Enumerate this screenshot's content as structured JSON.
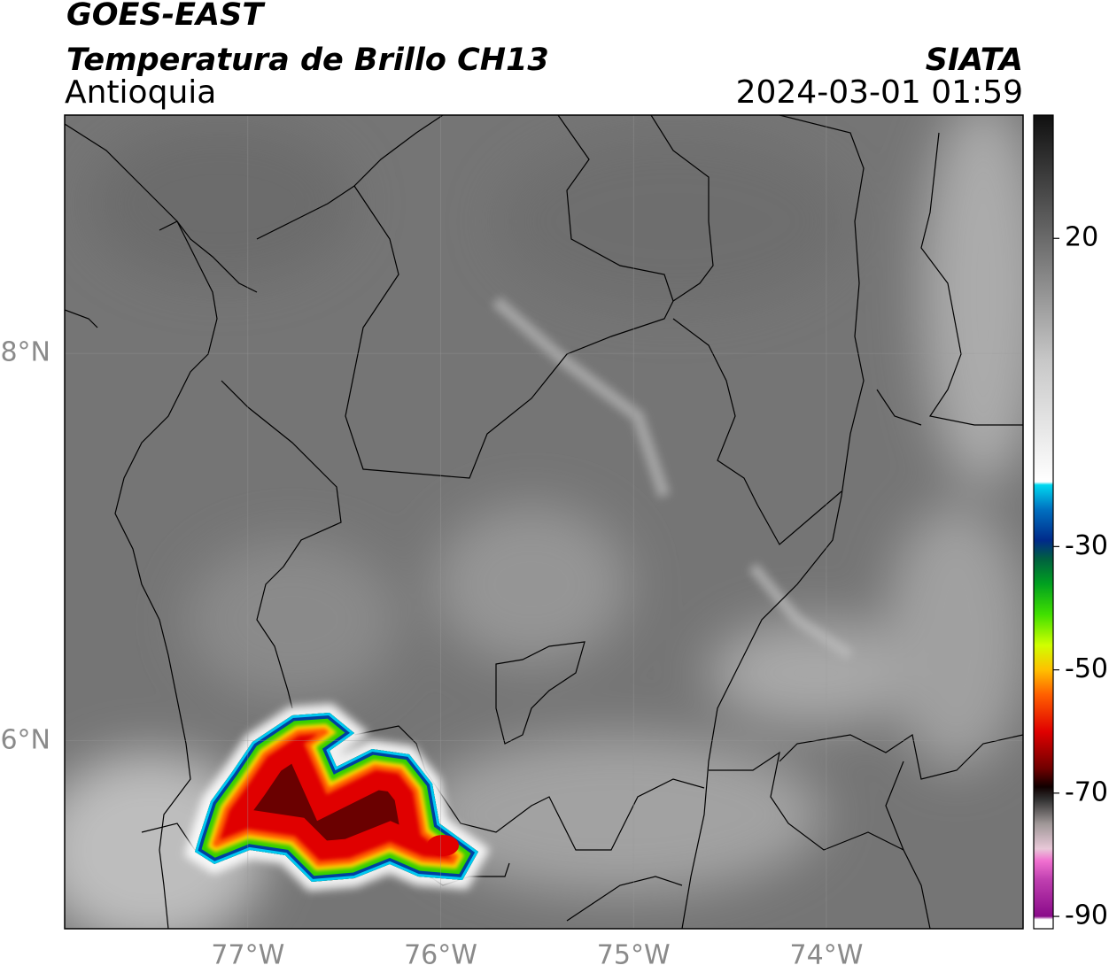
{
  "header": {
    "title": "GOES-EAST",
    "subtitle": "Temperatura de Brillo CH13",
    "region": "Antioquia",
    "source": "SIATA",
    "datetime": "2024-03-01 01:59"
  },
  "map": {
    "xlim": [
      -77.95,
      -72.98
    ],
    "ylim": [
      5.03,
      9.23
    ],
    "grid": true,
    "xticks": [
      {
        "value": -77,
        "label": "77°W"
      },
      {
        "value": -76,
        "label": "76°W"
      },
      {
        "value": -75,
        "label": "75°W"
      },
      {
        "value": -74,
        "label": "74°W"
      }
    ],
    "yticks": [
      {
        "value": 6,
        "label": "6°N"
      },
      {
        "value": 8,
        "label": "8°N"
      }
    ]
  },
  "colorbar": {
    "lim": [
      -92,
      40
    ],
    "ticks": [
      20,
      -30,
      -50,
      -70,
      -90
    ],
    "stops": [
      [
        -92,
        "#ffffff"
      ],
      [
        -90.5,
        "#ffffff"
      ],
      [
        -90,
        "#8a0a8a"
      ],
      [
        -84,
        "#c040b0"
      ],
      [
        -81,
        "#f070d0"
      ],
      [
        -79,
        "#e8c8d8"
      ],
      [
        -75,
        "#a09898"
      ],
      [
        -71,
        "#303030"
      ],
      [
        -69,
        "#100000"
      ],
      [
        -66,
        "#700000"
      ],
      [
        -60,
        "#e00000"
      ],
      [
        -54,
        "#ff6000"
      ],
      [
        -50,
        "#ffc000"
      ],
      [
        -46,
        "#d0ff00"
      ],
      [
        -41,
        "#40e000"
      ],
      [
        -36,
        "#00a020"
      ],
      [
        -32,
        "#006040"
      ],
      [
        -29,
        "#002a8a"
      ],
      [
        -24,
        "#0070c0"
      ],
      [
        -20,
        "#00d8f0"
      ],
      [
        -19.5,
        "#ffffff"
      ],
      [
        0,
        "#c8c8c8"
      ],
      [
        20,
        "#6a6a6a"
      ],
      [
        40,
        "#101010"
      ]
    ]
  }
}
